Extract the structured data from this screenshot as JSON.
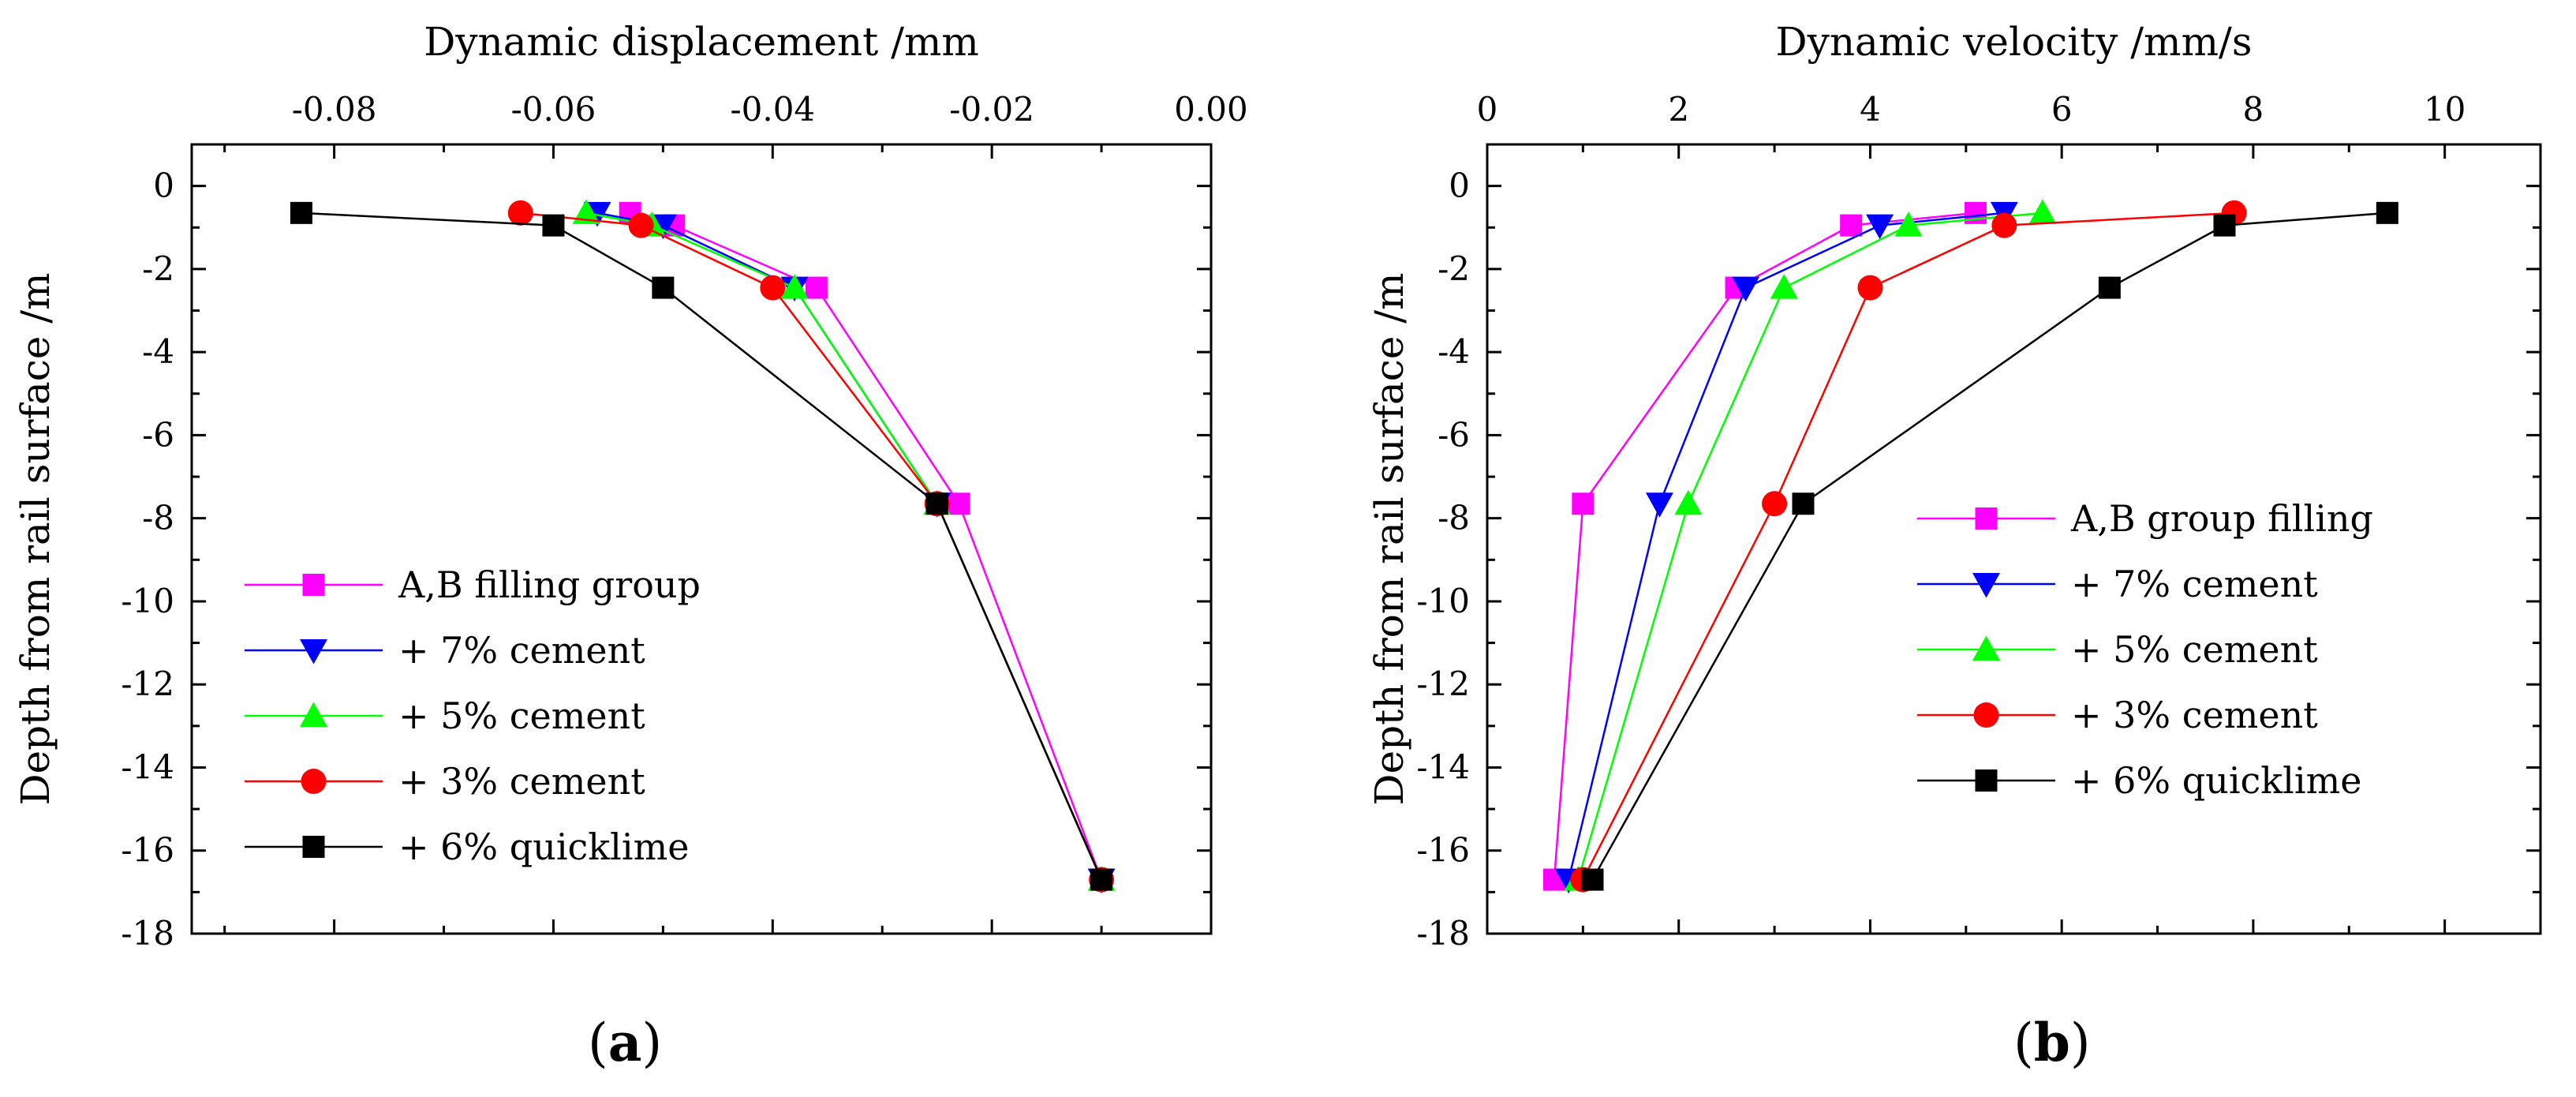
{
  "chart_data": [
    {
      "type": "line",
      "panel_label": {
        "open": "(",
        "letter": "a",
        "close": ")"
      },
      "xlabel": "Dynamic displacement /mm",
      "ylabel": "Depth from rail surface /m",
      "x_axis_position": "top",
      "xlim": [
        -0.093,
        0.0
      ],
      "ylim": [
        -18,
        1
      ],
      "x_ticks": [
        -0.08,
        -0.06,
        -0.04,
        -0.02,
        0.0
      ],
      "x_tick_labels": [
        "-0.08",
        "-0.06",
        "-0.04",
        "-0.02",
        "0.00"
      ],
      "y_ticks": [
        0,
        -2,
        -4,
        -6,
        -8,
        -10,
        -12,
        -14,
        -16,
        -18
      ],
      "y_tick_labels": [
        "0",
        "-2",
        "-4",
        "-6",
        "-8",
        "-10",
        "-12",
        "-14",
        "-16",
        "-18"
      ],
      "grid": false,
      "legend_position": "bottom-left",
      "series": [
        {
          "name": "A,B filling group",
          "color": "#ff00ff",
          "marker": "square",
          "points": [
            [
              -0.053,
              -0.65
            ],
            [
              -0.049,
              -0.95
            ],
            [
              -0.036,
              -2.45
            ],
            [
              -0.023,
              -7.65
            ],
            [
              -0.01,
              -16.7
            ]
          ]
        },
        {
          "name": "+ 7% cement",
          "color": "#0000ff",
          "marker": "triangle-down",
          "points": [
            [
              -0.056,
              -0.65
            ],
            [
              -0.05,
              -0.95
            ],
            [
              -0.038,
              -2.45
            ],
            [
              -0.025,
              -7.65
            ],
            [
              -0.01,
              -16.7
            ]
          ]
        },
        {
          "name": "+ 5% cement",
          "color": "#00ff00",
          "marker": "triangle-up",
          "points": [
            [
              -0.057,
              -0.65
            ],
            [
              -0.051,
              -0.95
            ],
            [
              -0.038,
              -2.45
            ],
            [
              -0.025,
              -7.65
            ],
            [
              -0.01,
              -16.7
            ]
          ]
        },
        {
          "name": "+ 3% cement",
          "color": "#ff0000",
          "marker": "circle",
          "points": [
            [
              -0.063,
              -0.65
            ],
            [
              -0.052,
              -0.95
            ],
            [
              -0.04,
              -2.45
            ],
            [
              -0.025,
              -7.65
            ],
            [
              -0.01,
              -16.7
            ]
          ]
        },
        {
          "name": "+ 6% quicklime",
          "color": "#000000",
          "marker": "square",
          "points": [
            [
              -0.083,
              -0.65
            ],
            [
              -0.06,
              -0.95
            ],
            [
              -0.05,
              -2.45
            ],
            [
              -0.025,
              -7.65
            ],
            [
              -0.01,
              -16.7
            ]
          ]
        }
      ]
    },
    {
      "type": "line",
      "panel_label": {
        "open": "(",
        "letter": "b",
        "close": ")"
      },
      "xlabel": "Dynamic velocity /mm/s",
      "ylabel": "Depth from rail surface /m",
      "x_axis_position": "top",
      "xlim": [
        0,
        11
      ],
      "ylim": [
        -18,
        1
      ],
      "x_ticks": [
        0,
        2,
        4,
        6,
        8,
        10
      ],
      "x_tick_labels": [
        "0",
        "2",
        "4",
        "6",
        "8",
        "10"
      ],
      "y_ticks": [
        0,
        -2,
        -4,
        -6,
        -8,
        -10,
        -12,
        -14,
        -16,
        -18
      ],
      "y_tick_labels": [
        "0",
        "-2",
        "-4",
        "-6",
        "-8",
        "-10",
        "-12",
        "-14",
        "-16",
        "-18"
      ],
      "grid": false,
      "legend_position": "right",
      "series": [
        {
          "name": "A,B group filling",
          "color": "#ff00ff",
          "marker": "square",
          "points": [
            [
              5.1,
              -0.65
            ],
            [
              3.8,
              -0.95
            ],
            [
              2.6,
              -2.45
            ],
            [
              1.0,
              -7.65
            ],
            [
              0.7,
              -16.7
            ]
          ]
        },
        {
          "name": "+ 7% cement",
          "color": "#0000ff",
          "marker": "triangle-down",
          "points": [
            [
              5.4,
              -0.65
            ],
            [
              4.1,
              -0.95
            ],
            [
              2.7,
              -2.45
            ],
            [
              1.8,
              -7.65
            ],
            [
              0.85,
              -16.7
            ]
          ]
        },
        {
          "name": "+ 5% cement",
          "color": "#00ff00",
          "marker": "triangle-up",
          "points": [
            [
              5.8,
              -0.65
            ],
            [
              4.4,
              -0.95
            ],
            [
              3.1,
              -2.45
            ],
            [
              2.1,
              -7.65
            ],
            [
              0.95,
              -16.7
            ]
          ]
        },
        {
          "name": "+ 3% cement",
          "color": "#ff0000",
          "marker": "circle",
          "points": [
            [
              7.8,
              -0.65
            ],
            [
              5.4,
              -0.95
            ],
            [
              4.0,
              -2.45
            ],
            [
              3.0,
              -7.65
            ],
            [
              1.0,
              -16.7
            ]
          ]
        },
        {
          "name": "+ 6% quicklime",
          "color": "#000000",
          "marker": "square",
          "points": [
            [
              9.4,
              -0.65
            ],
            [
              7.7,
              -0.95
            ],
            [
              6.5,
              -2.45
            ],
            [
              3.3,
              -7.65
            ],
            [
              1.1,
              -16.7
            ]
          ]
        }
      ]
    }
  ]
}
